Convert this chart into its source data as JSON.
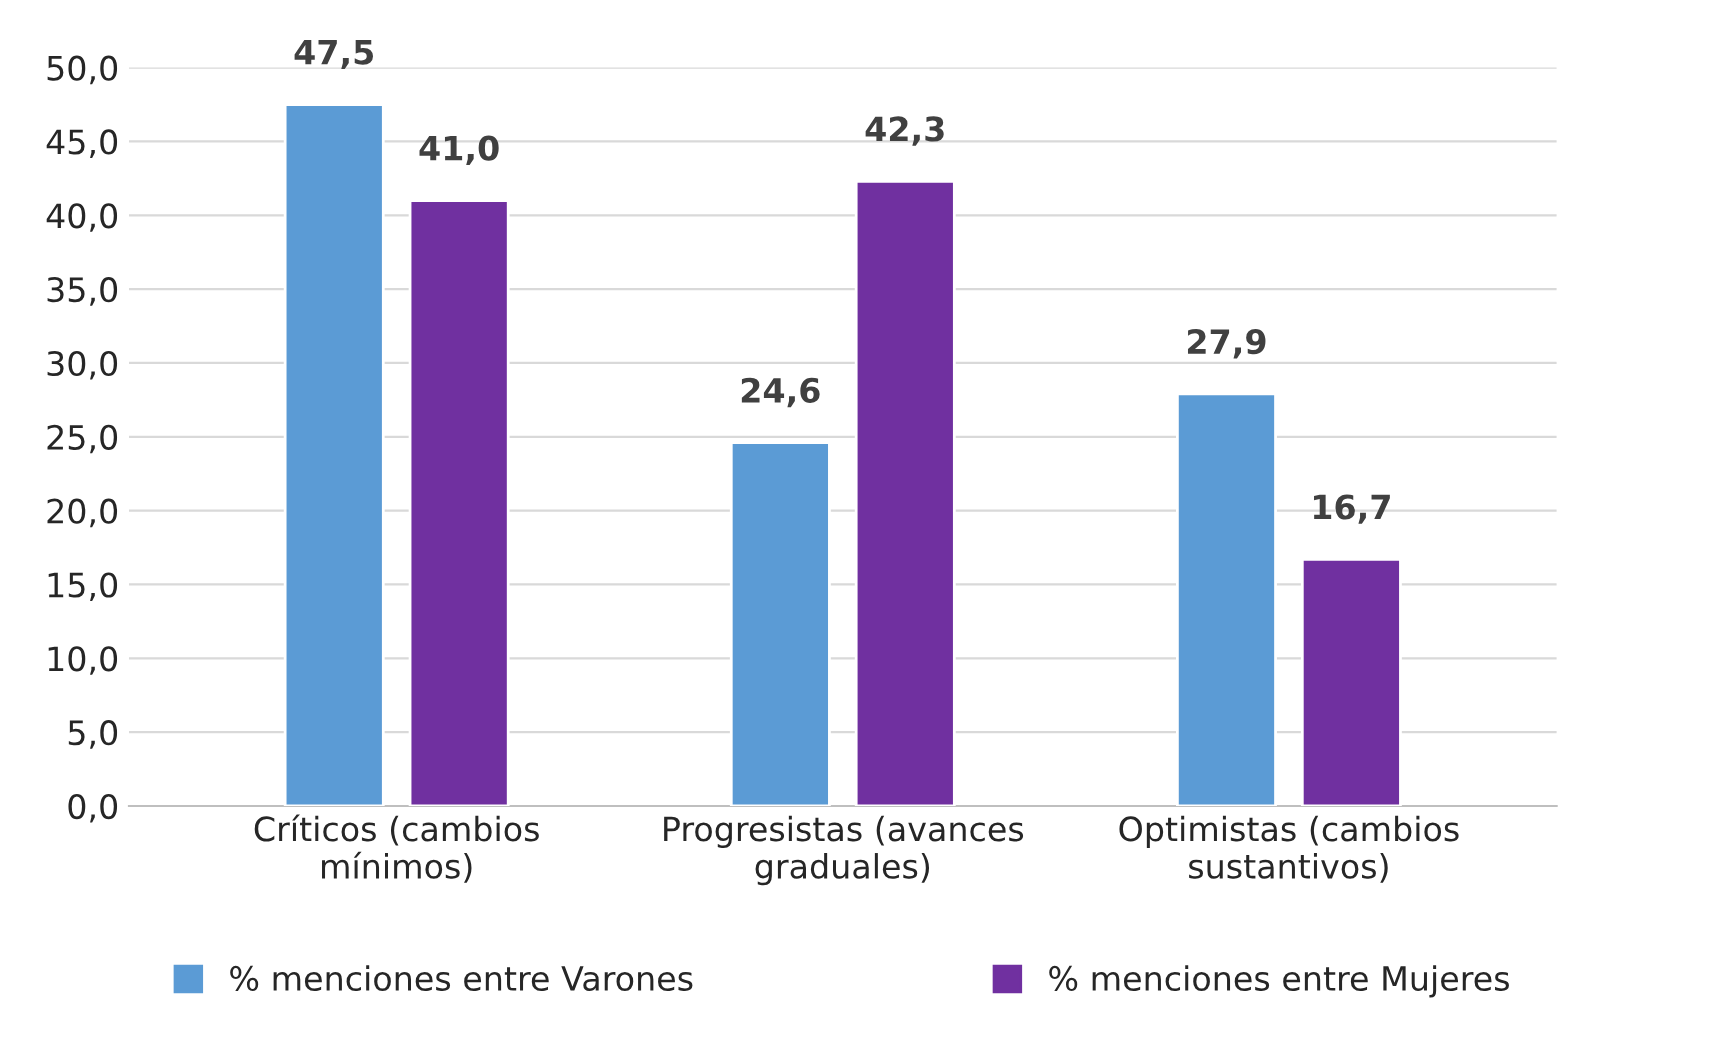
{
  "chart_data": {
    "type": "bar",
    "categories": [
      "Críticos (cambios\nmínimos)",
      "Progresistas (avances\ngraduales)",
      "Optimistas (cambios\nsustantivos)"
    ],
    "series": [
      {
        "name": "% menciones entre Varones",
        "color": "#5b9bd5",
        "values": [
          47.5,
          24.6,
          27.9
        ],
        "value_labels": [
          "47,5",
          "24,6",
          "27,9"
        ]
      },
      {
        "name": "% menciones entre Mujeres",
        "color": "#7030a0",
        "values": [
          41.0,
          42.3,
          16.7
        ],
        "value_labels": [
          "41,0",
          "42,3",
          "16,7"
        ]
      }
    ],
    "ylim": [
      0,
      50
    ],
    "yticks": [
      {
        "value": 0,
        "label": "0,0"
      },
      {
        "value": 5,
        "label": "5,0"
      },
      {
        "value": 10,
        "label": "10,0"
      },
      {
        "value": 15,
        "label": "15,0"
      },
      {
        "value": 20,
        "label": "20,0"
      },
      {
        "value": 25,
        "label": "25,0"
      },
      {
        "value": 30,
        "label": "30,0"
      },
      {
        "value": 35,
        "label": "35,0"
      },
      {
        "value": 40,
        "label": "40,0"
      },
      {
        "value": 45,
        "label": "45,0"
      },
      {
        "value": 50,
        "label": "50,0"
      }
    ],
    "grid": "y",
    "legend": "bottom"
  }
}
